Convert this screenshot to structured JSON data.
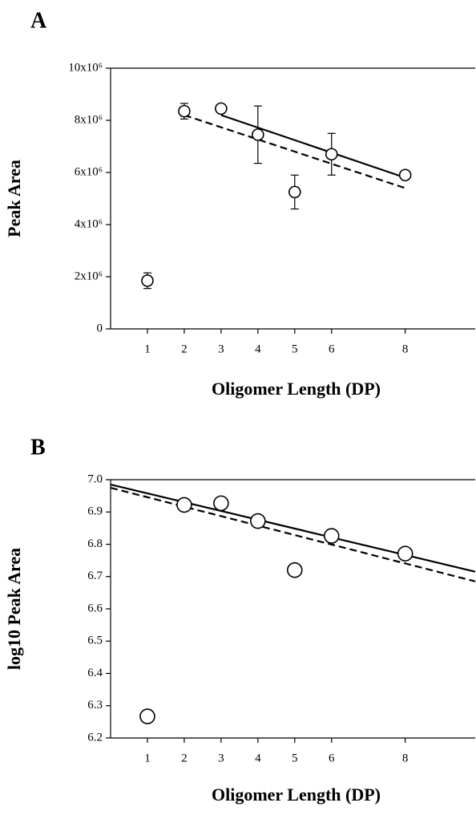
{
  "chart_data": [
    {
      "type": "scatter",
      "title": "A",
      "y_label": "Peak Area",
      "x_label": "Oligomer Length (DP)",
      "x": [
        1,
        2,
        3,
        4,
        5,
        6,
        8
      ],
      "series": [
        {
          "color": "#000000",
          "values": [
            1850000,
            8350000,
            8450000,
            7450000,
            5250000,
            6700000,
            5900000
          ],
          "errors": [
            300000,
            300000,
            0,
            1100000,
            650000,
            800000,
            0
          ]
        }
      ],
      "fit_lines": [
        {
          "style": "solid",
          "x": [
            3,
            8
          ],
          "values": [
            8200000,
            5800000
          ]
        },
        {
          "style": "dashed",
          "x": [
            2,
            8
          ],
          "values": [
            8200000,
            5400000
          ]
        }
      ],
      "xlim": [
        0,
        9.9
      ],
      "ylim": [
        0,
        10000000
      ],
      "xticks": [
        1,
        2,
        3,
        4,
        5,
        6,
        8
      ],
      "yticks": [
        0,
        {
          "value": 2000000,
          "label": "2x10⁶"
        },
        {
          "value": 4000000,
          "label": "4x10⁶"
        },
        {
          "value": 6000000,
          "label": "6x10⁶"
        },
        {
          "value": 8000000,
          "label": "8x10⁶"
        },
        {
          "value": 10000000,
          "label": "10x10⁶"
        }
      ]
    },
    {
      "type": "scatter",
      "title": "B",
      "y_label": "log10 Peak Area",
      "x_label": "Oligomer Length (DP)",
      "x": [
        1,
        2,
        3,
        4,
        5,
        6,
        8
      ],
      "series": [
        {
          "color": "#000000",
          "values": [
            6.267,
            6.922,
            6.927,
            6.872,
            6.72,
            6.826,
            6.771
          ]
        }
      ],
      "fit_lines": [
        {
          "style": "solid",
          "x": [
            0,
            9.9
          ],
          "values": [
            6.985,
            6.715
          ]
        },
        {
          "style": "dashed",
          "x": [
            0,
            9.9
          ],
          "values": [
            6.975,
            6.685
          ]
        }
      ],
      "xlim": [
        0,
        9.9
      ],
      "ylim": [
        6.2,
        7.0
      ],
      "xticks": [
        1,
        2,
        3,
        4,
        5,
        6,
        8
      ],
      "yticks": [
        6.2,
        6.3,
        6.4,
        6.5,
        6.6,
        6.7,
        6.8,
        6.9,
        {
          "value": 7,
          "label": "7.0"
        }
      ]
    }
  ]
}
